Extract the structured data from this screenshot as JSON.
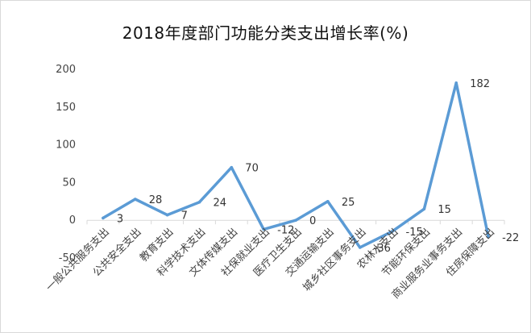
{
  "chart_data": {
    "type": "line",
    "title": "2018年度部门功能分类支出增长率(%)",
    "xlabel": "",
    "ylabel": "",
    "categories": [
      "一般公共服务支出",
      "公共安全支出",
      "教育支出",
      "科学技术支出",
      "文体传媒支出",
      "社保就业支出",
      "医疗卫生支出",
      "交通运输支出",
      "城乡社区事务支出",
      "农林水支出",
      "节能环保支出",
      "商业服务业事务支出",
      "住房保障支出"
    ],
    "series": [
      {
        "values": [
          3,
          28,
          7,
          24,
          70,
          -12,
          0,
          25,
          -36,
          -15,
          15,
          182,
          -22
        ]
      }
    ],
    "data_labels": [
      "3",
      "28",
      "7",
      "24",
      "70",
      "-12",
      "0",
      "25",
      "-36",
      "-15",
      "15",
      "182",
      "-22"
    ],
    "ylim": [
      -50,
      200
    ],
    "yticks": [
      -50,
      0,
      50,
      100,
      150,
      200
    ],
    "grid": false,
    "legend": "none",
    "line_color": "#5b9bd5"
  }
}
